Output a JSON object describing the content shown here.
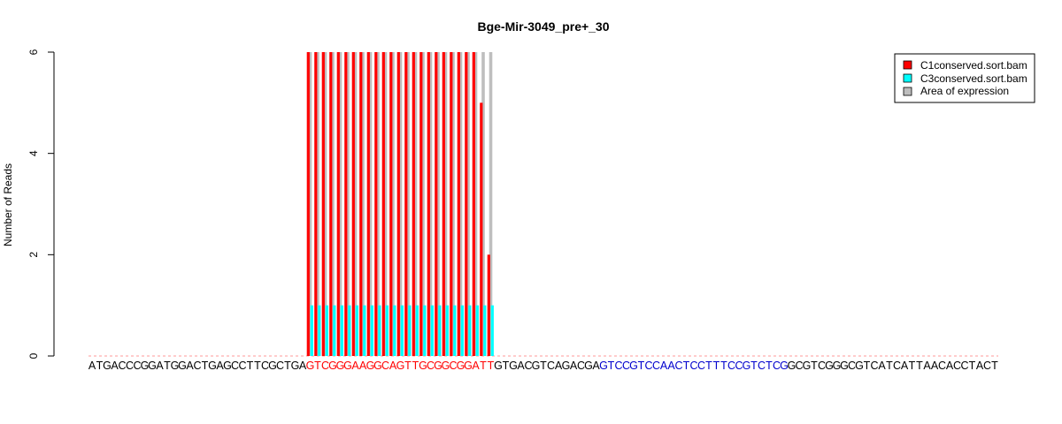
{
  "chart_data": {
    "type": "bar",
    "title": "Bge-Mir-3049_pre+_30",
    "ylabel": "Number of Reads",
    "xlabel": "",
    "ylim": [
      0,
      6
    ],
    "yticks": [
      "0",
      "2",
      "4",
      "6"
    ],
    "sequence": "ATGACCCGGATGGACTGAGCCTTCGCTGAGTCGGGAAGGCAGTTGCGGCGGATTGTGACGTCAGACGAGTCCGTCCAACTCCTTTCCGTCTCGGCGTCGGGCGTCATCATTAACACCTACT",
    "highlight_red": {
      "start": 29,
      "end": 53
    },
    "highlight_blue": {
      "start": 68,
      "end": 92
    },
    "series": [
      {
        "name": "C1conserved.sort.bam",
        "color": "#ff0000",
        "start": 29,
        "values": [
          6,
          6,
          6,
          6,
          6,
          6,
          6,
          6,
          6,
          6,
          6,
          6,
          6,
          6,
          6,
          6,
          6,
          6,
          6,
          6,
          6,
          6,
          6,
          5,
          2
        ]
      },
      {
        "name": "C3conserved.sort.bam",
        "color": "#00ffff",
        "start": 29,
        "values": [
          1,
          1,
          1,
          1,
          1,
          1,
          1,
          1,
          1,
          1,
          1,
          1,
          1,
          1,
          1,
          1,
          1,
          1,
          1,
          1,
          1,
          1,
          1,
          1,
          1
        ]
      }
    ],
    "area_of_expression": {
      "start": 29,
      "end": 53,
      "color": "#bebebe"
    },
    "legend": {
      "position": "top-right",
      "entries": [
        {
          "label": "C1conserved.sort.bam",
          "color": "#ff0000"
        },
        {
          "label": "C3conserved.sort.bam",
          "color": "#00ffff"
        },
        {
          "label": "Area of expression",
          "color": "#bebebe"
        }
      ]
    },
    "colors": {
      "red_text": "#ff0000",
      "blue_text": "#0000cd",
      "black_text": "#000000",
      "baseline": "#ff9999"
    }
  }
}
